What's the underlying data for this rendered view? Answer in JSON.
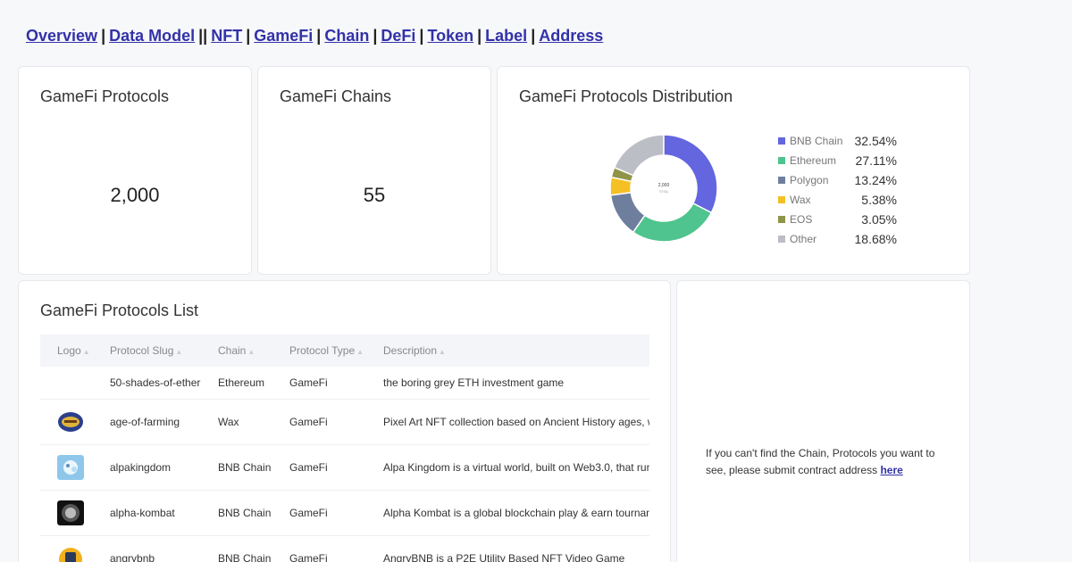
{
  "nav": {
    "items": [
      "Overview",
      "Data Model",
      "NFT",
      "GameFi",
      "Chain",
      "DeFi",
      "Token",
      "Label",
      "Address"
    ],
    "separators": [
      "|",
      "||",
      "|",
      "|",
      "|",
      "|",
      "|",
      "|"
    ]
  },
  "cards": {
    "protocols": {
      "title": "GameFi Protocols",
      "value": "2,000"
    },
    "chains": {
      "title": "GameFi Chains",
      "value": "55"
    },
    "distribution": {
      "title": "GameFi Protocols Distribution",
      "center_value": "2,000",
      "center_label": "TOTAL"
    }
  },
  "chart_data": {
    "type": "pie",
    "title": "GameFi Protocols Distribution",
    "categories": [
      "BNB Chain",
      "Ethereum",
      "Polygon",
      "Wax",
      "EOS",
      "Other"
    ],
    "values": [
      32.54,
      27.11,
      13.24,
      5.38,
      3.05,
      18.68
    ],
    "labels": [
      "32.54%",
      "27.11%",
      "13.24%",
      "5.38%",
      "3.05%",
      "18.68%"
    ],
    "colors": [
      "#6366df",
      "#4fc48e",
      "#6e7f9e",
      "#f4c025",
      "#8f9448",
      "#bcbec6"
    ],
    "legend": "right"
  },
  "list": {
    "title": "GameFi Protocols List",
    "columns": [
      "Logo",
      "Protocol Slug",
      "Chain",
      "Protocol Type",
      "Description"
    ],
    "rows": [
      {
        "logo": "",
        "slug": "50-shades-of-ether",
        "chain": "Ethereum",
        "type": "GameFi",
        "description": "the boring grey ETH investment game"
      },
      {
        "logo": "age-of-farming-logo",
        "slug": "age-of-farming",
        "chain": "Wax",
        "type": "GameFi",
        "description": "Pixel Art NFT collection based on Ancient History ages, w"
      },
      {
        "logo": "alpakingdom-logo",
        "slug": "alpakingdom",
        "chain": "BNB Chain",
        "type": "GameFi",
        "description": "Alpa Kingdom is a virtual world, built on Web3.0, that run"
      },
      {
        "logo": "alpha-kombat-logo",
        "slug": "alpha-kombat",
        "chain": "BNB Chain",
        "type": "GameFi",
        "description": "Alpha Kombat is a global blockchain play & earn tournam"
      },
      {
        "logo": "angrybnb-logo",
        "slug": "angrybnb",
        "chain": "BNB Chain",
        "type": "GameFi",
        "description": "AngryBNB is a P2E Utility Based NFT Video Game"
      }
    ]
  },
  "missing": {
    "text": "If you can't find the Chain, Protocols you want to see, please submit contract address ",
    "link": "here"
  }
}
